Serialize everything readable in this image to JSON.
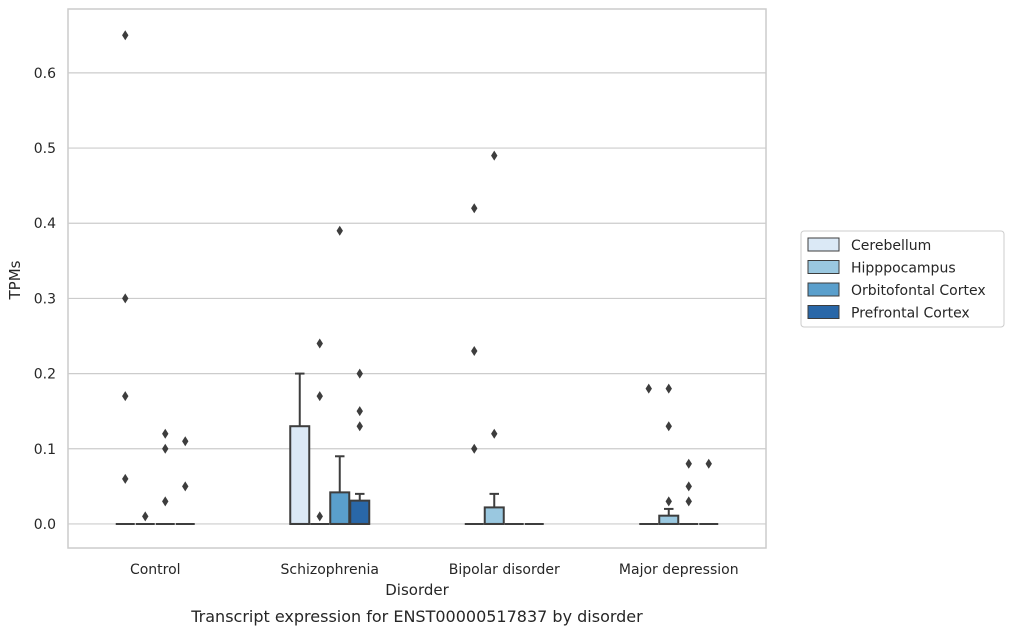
{
  "caption": "Transcript expression for ENST00000517837 by disorder",
  "chart_data": {
    "type": "box",
    "xlabel": "Disorder",
    "ylabel": "TPMs",
    "ylim": [
      -0.032,
      0.685
    ],
    "yticks": [
      "0.0",
      "0.1",
      "0.2",
      "0.3",
      "0.4",
      "0.5",
      "0.6"
    ],
    "ytick_values": [
      0,
      0.1,
      0.2,
      0.3,
      0.4,
      0.5,
      0.6
    ],
    "grid": "horizontal",
    "legend_placement": "center-right",
    "categories": [
      "Control",
      "Schizophrenia",
      "Bipolar disorder",
      "Major depression"
    ],
    "series": [
      {
        "name": "Cerebellum",
        "color": "#dbe9f6",
        "boxes": [
          {
            "q1": 0,
            "median": 0,
            "q3": 0,
            "whisker_low": 0,
            "whisker_high": 0,
            "outliers": [
              0.65,
              0.3,
              0.17,
              0.06
            ]
          },
          {
            "q1": 0,
            "median": 0,
            "q3": 0.13,
            "whisker_low": 0,
            "whisker_high": 0.2,
            "outliers": []
          },
          {
            "q1": 0,
            "median": 0,
            "q3": 0,
            "whisker_low": 0,
            "whisker_high": 0,
            "outliers": [
              0.42,
              0.23,
              0.1
            ]
          },
          {
            "q1": 0,
            "median": 0,
            "q3": 0,
            "whisker_low": 0,
            "whisker_high": 0,
            "outliers": [
              0.18
            ]
          }
        ]
      },
      {
        "name": "Hipppocampus",
        "color": "#9ac8e0",
        "boxes": [
          {
            "q1": 0,
            "median": 0,
            "q3": 0,
            "whisker_low": 0,
            "whisker_high": 0,
            "outliers": [
              0.01
            ]
          },
          {
            "q1": 0,
            "median": 0,
            "q3": 0,
            "whisker_low": 0,
            "whisker_high": 0,
            "outliers": [
              0.24,
              0.17,
              0.01
            ]
          },
          {
            "q1": 0,
            "median": 0,
            "q3": 0.022,
            "whisker_low": 0,
            "whisker_high": 0.04,
            "outliers": [
              0.49,
              0.12
            ]
          },
          {
            "q1": 0,
            "median": 0,
            "q3": 0.011,
            "whisker_low": 0,
            "whisker_high": 0.02,
            "outliers": [
              0.18,
              0.13,
              0.03
            ]
          }
        ]
      },
      {
        "name": "Orbitofontal Cortex",
        "color": "#5a9fcc",
        "boxes": [
          {
            "q1": 0,
            "median": 0,
            "q3": 0,
            "whisker_low": 0,
            "whisker_high": 0,
            "outliers": [
              0.12,
              0.1,
              0.03
            ]
          },
          {
            "q1": 0,
            "median": 0,
            "q3": 0.042,
            "whisker_low": 0,
            "whisker_high": 0.09,
            "outliers": [
              0.39
            ]
          },
          {
            "q1": 0,
            "median": 0,
            "q3": 0,
            "whisker_low": 0,
            "whisker_high": 0,
            "outliers": []
          },
          {
            "q1": 0,
            "median": 0,
            "q3": 0,
            "whisker_low": 0,
            "whisker_high": 0,
            "outliers": [
              0.08,
              0.05,
              0.03
            ]
          }
        ]
      },
      {
        "name": "Prefrontal Cortex",
        "color": "#2967a8",
        "boxes": [
          {
            "q1": 0,
            "median": 0,
            "q3": 0,
            "whisker_low": 0,
            "whisker_high": 0,
            "outliers": [
              0.11,
              0.05
            ]
          },
          {
            "q1": 0,
            "median": 0,
            "q3": 0.031,
            "whisker_low": 0,
            "whisker_high": 0.04,
            "outliers": [
              0.2,
              0.15,
              0.13
            ]
          },
          {
            "q1": 0,
            "median": 0,
            "q3": 0,
            "whisker_low": 0,
            "whisker_high": 0,
            "outliers": []
          },
          {
            "q1": 0,
            "median": 0,
            "q3": 0,
            "whisker_low": 0,
            "whisker_high": 0,
            "outliers": [
              0.08
            ]
          }
        ]
      }
    ]
  }
}
